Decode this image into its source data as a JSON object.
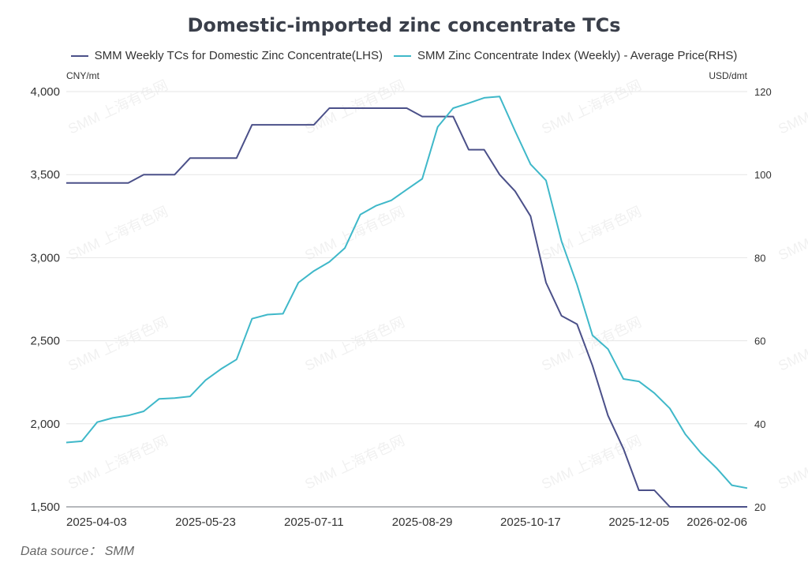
{
  "watermark_text": "SMM 上海有色网",
  "source": "Data source： SMM",
  "chart_data": {
    "type": "line",
    "title": "Domestic-imported zinc concentrate TCs",
    "left_unit": "CNY/mt",
    "right_unit": "USD/dmt",
    "left_ylim": [
      1500,
      4000
    ],
    "right_ylim": [
      20,
      120
    ],
    "left_ticks": [
      "1,500",
      "2,000",
      "2,500",
      "3,000",
      "3,500",
      "4,000"
    ],
    "left_tick_values": [
      1500,
      2000,
      2500,
      3000,
      3500,
      4000
    ],
    "right_ticks": [
      "20",
      "40",
      "60",
      "80",
      "100",
      "120"
    ],
    "right_tick_values": [
      20,
      40,
      60,
      80,
      100,
      120
    ],
    "x_labels": [
      "2025-04-03",
      "2025-05-23",
      "2025-07-11",
      "2025-08-29",
      "2025-10-17",
      "2025-12-05",
      "2026-02-06"
    ],
    "x_label_indices": [
      2,
      9,
      16,
      23,
      30,
      37,
      44
    ],
    "x_count": 45,
    "series": [
      {
        "name": "SMM Weekly TCs for Domestic Zinc Concentrate(LHS)",
        "axis": "left",
        "color": "#4b5089",
        "values": [
          3450,
          3450,
          3450,
          3450,
          3450,
          3500,
          3500,
          3500,
          3600,
          3600,
          3600,
          3600,
          3800,
          3800,
          3800,
          3800,
          3800,
          3900,
          3900,
          3900,
          3900,
          3900,
          3900,
          3850,
          3850,
          3850,
          3650,
          3650,
          3500,
          3400,
          3250,
          2850,
          2650,
          2600,
          2350,
          2050,
          1850,
          1600,
          1600,
          1500,
          1500,
          1500,
          1500,
          1500,
          1500
        ]
      },
      {
        "name": "SMM Zinc Concentrate Index (Weekly) - Average Price(RHS)",
        "axis": "right",
        "color": "#3fb8c9",
        "values": [
          35.5,
          35.8,
          40.4,
          41.4,
          42,
          43,
          46,
          46.2,
          46.6,
          50.5,
          53.2,
          55.5,
          65.3,
          66.3,
          66.5,
          74,
          76.8,
          79,
          82.3,
          90.4,
          92.5,
          93.8,
          96.4,
          99,
          111.5,
          116,
          117.2,
          118.5,
          118.8,
          110.5,
          102.5,
          98.6,
          84,
          73.5,
          61.3,
          58,
          50.8,
          50.2,
          47.4,
          43.7,
          37.5,
          33,
          29.4,
          25.2,
          24.5
        ]
      }
    ]
  }
}
